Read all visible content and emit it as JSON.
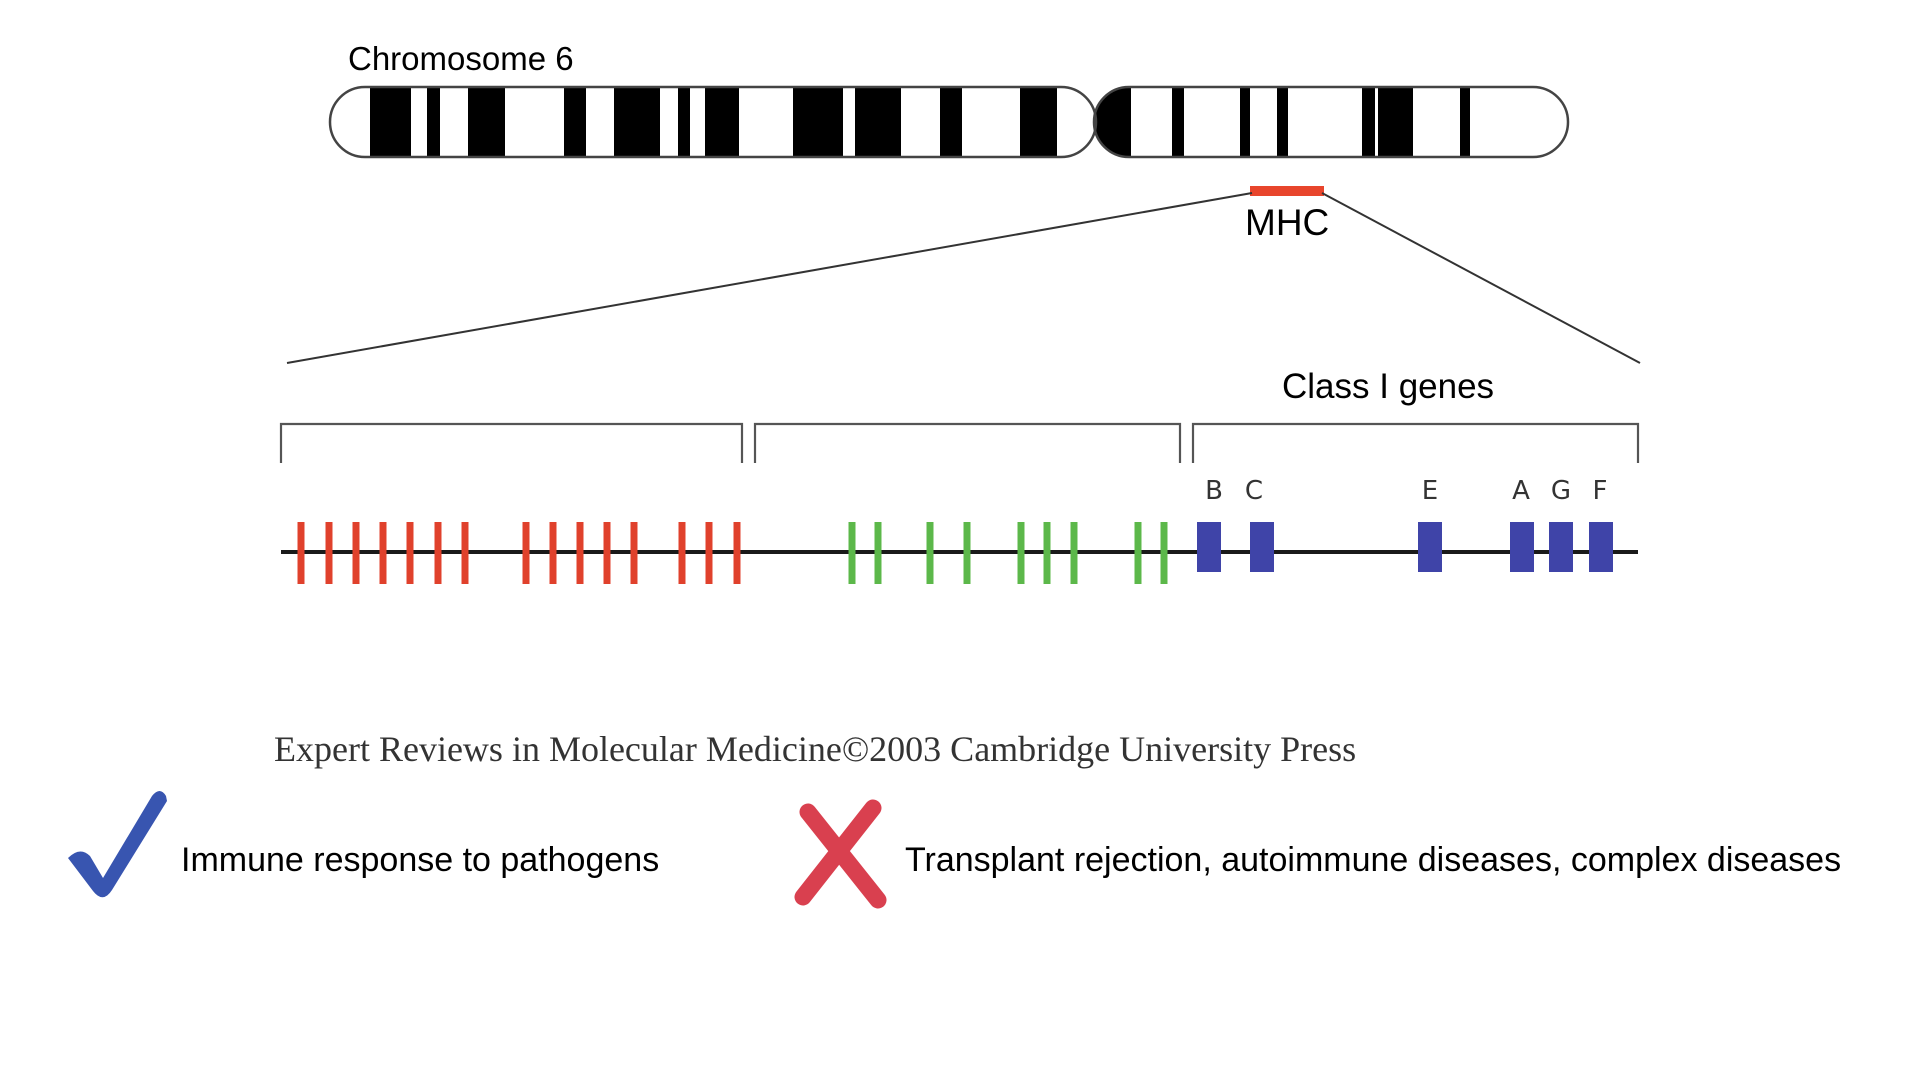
{
  "chromosome": {
    "title": "Chromosome 6",
    "region_label": "MHC"
  },
  "mhc_map": {
    "class_label": "Class I genes",
    "class1_gene_letters": [
      "B",
      "C",
      "E",
      "A",
      "G",
      "F"
    ]
  },
  "citation": "Expert Reviews in Molecular Medicine©2003 Cambridge University Press",
  "outcomes": {
    "positive_icon": "checkmark-icon",
    "positive_text": "Immune response to pathogens",
    "negative_icon": "cross-icon",
    "negative_text": "Transplant rejection, autoimmune diseases, complex diseases"
  },
  "colors": {
    "region_highlight": "#e8452c",
    "class_3_genes": "#e0412c",
    "class_2_genes": "#5cb84a",
    "class_1_genes": "#3f44a8",
    "check": "#3855b0",
    "cross": "#d9404f"
  }
}
